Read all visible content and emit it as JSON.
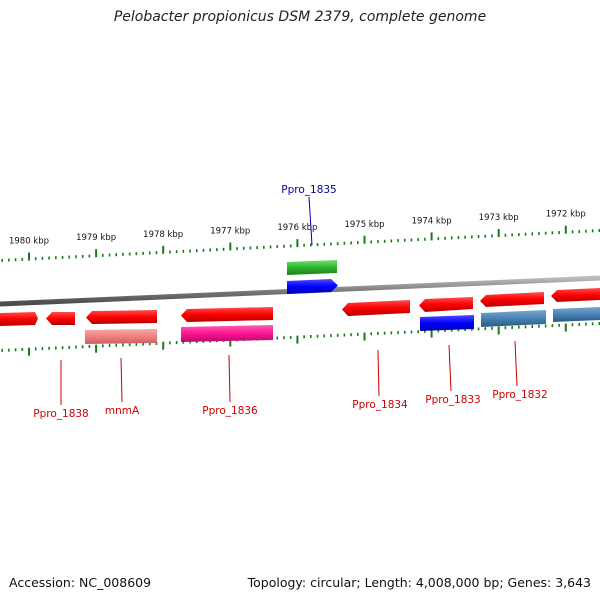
{
  "title": "Pelobacter propionicus DSM 2379, complete genome",
  "footer": {
    "accession": "Accession: NC_008609",
    "summary": "Topology: circular; Length: 4,008,000 bp; Genes: 3,643"
  },
  "scale": {
    "ticks": [
      {
        "label": "1980 kbp",
        "kbp": 1980
      },
      {
        "label": "1979 kbp",
        "kbp": 1979
      },
      {
        "label": "1978 kbp",
        "kbp": 1978
      },
      {
        "label": "1977 kbp",
        "kbp": 1977
      },
      {
        "label": "1976 kbp",
        "kbp": 1976
      },
      {
        "label": "1975 kbp",
        "kbp": 1975
      },
      {
        "label": "1974 kbp",
        "kbp": 1974
      },
      {
        "label": "1973 kbp",
        "kbp": 1973
      },
      {
        "label": "1972 kbp",
        "kbp": 1972
      }
    ]
  },
  "colors": {
    "cds": "#ff0000",
    "trna": "#2db42d",
    "blue": "#0000ff",
    "salmon": "#f08080",
    "magenta": "#ff1493",
    "steel": "#4682b4",
    "backbone": "#888888",
    "tick": "#1a7a1a",
    "label_red": "#cc0000",
    "label_blue": "#0000aa"
  },
  "labels": [
    {
      "text": "Ppro_1835",
      "color": "label_blue"
    },
    {
      "text": "Ppro_1838",
      "color": "label_red"
    },
    {
      "text": "mnmA",
      "color": "label_red"
    },
    {
      "text": "Ppro_1836",
      "color": "label_red"
    },
    {
      "text": "Ppro_1834",
      "color": "label_red"
    },
    {
      "text": "Ppro_1833",
      "color": "label_red"
    },
    {
      "text": "Ppro_1832",
      "color": "label_red"
    }
  ]
}
